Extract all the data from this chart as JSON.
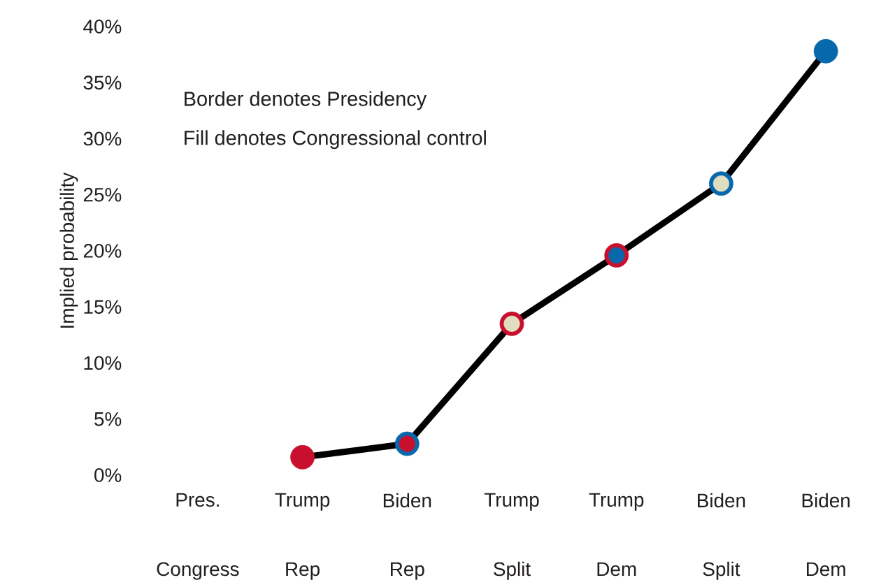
{
  "chart_data": {
    "type": "line",
    "ylabel": "Implied probability",
    "categories": [
      "Pres.",
      "Trump",
      "Biden",
      "Trump",
      "Trump",
      "Biden",
      "Biden"
    ],
    "ylim": [
      0,
      40
    ],
    "yticks": [
      {
        "value": 0,
        "label": "0%"
      },
      {
        "value": 5,
        "label": "5%"
      },
      {
        "value": 10,
        "label": "10%"
      },
      {
        "value": 15,
        "label": "15%"
      },
      {
        "value": 20,
        "label": "20%"
      },
      {
        "value": 25,
        "label": "25%"
      },
      {
        "value": 30,
        "label": "30%"
      },
      {
        "value": 35,
        "label": "35%"
      },
      {
        "value": 40,
        "label": "40%"
      }
    ],
    "annotations": [
      "Border denotes Presidency",
      "Fill denotes Congressional control",
      "Congress",
      "Rep",
      "Rep",
      "Split",
      "Dem",
      "Split",
      "Dem"
    ],
    "marker": "circle",
    "line_style": "solid",
    "series": [
      {
        "color": "#000000",
        "colors": [
          null,
          "#c8102e",
          "#0868ac",
          "#c8102e",
          "#c8102e",
          "#0868ac",
          "#0868ac"
        ],
        "values": [
          null,
          1.6,
          2.8,
          13.5,
          19.6,
          26.0,
          37.8
        ]
      },
      {
        "type": "scatter",
        "colors": [
          null,
          null,
          "#c8102e",
          "#e1ddc0",
          "#0868ac",
          "#e1ddc0",
          null
        ],
        "values": [
          null,
          null,
          2.8,
          13.5,
          19.6,
          26.0,
          null
        ]
      }
    ]
  }
}
